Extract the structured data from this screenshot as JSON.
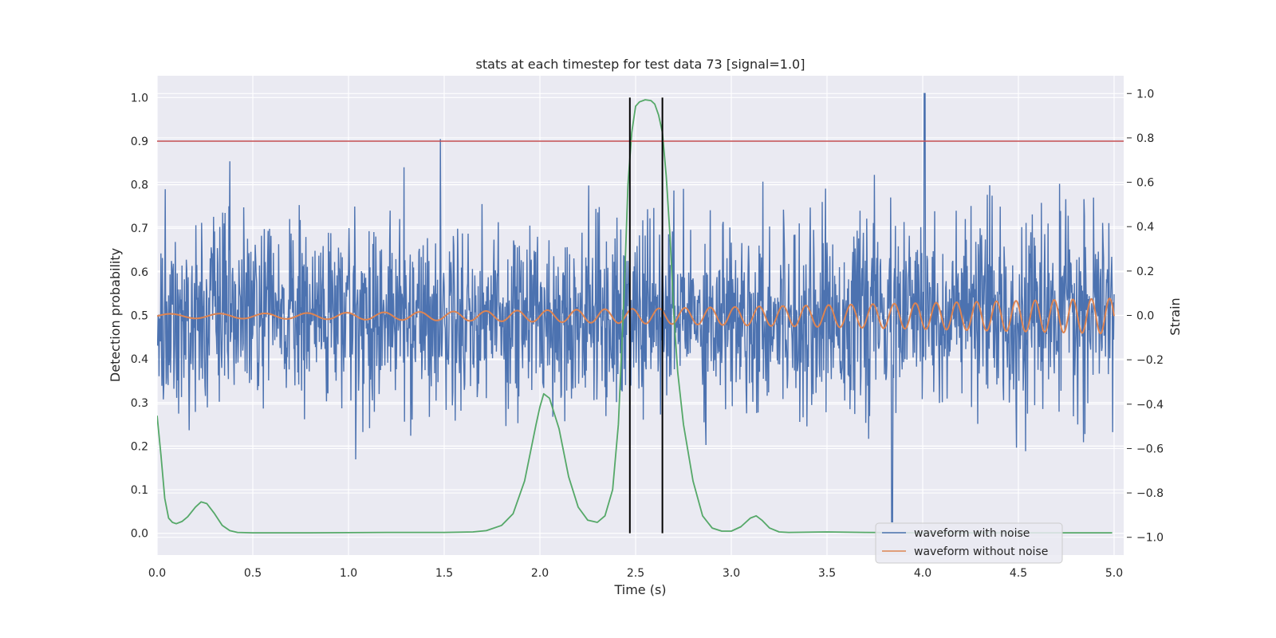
{
  "chart_data": {
    "type": "line",
    "title": "stats at each timestep for test data 73 [signal=1.0]",
    "xlabel": "Time (s)",
    "ylabel_left": "Detection probability",
    "ylabel_right": "Strain",
    "xlim": [
      0.0,
      5.05
    ],
    "ylim_left": [
      -0.05,
      1.05
    ],
    "ylim_right": [
      -1.08,
      1.08
    ],
    "xticks": [
      "0.0",
      "0.5",
      "1.0",
      "1.5",
      "2.0",
      "2.5",
      "3.0",
      "3.5",
      "4.0",
      "4.5",
      "5.0"
    ],
    "yticks_left": [
      "0.0",
      "0.1",
      "0.2",
      "0.3",
      "0.4",
      "0.5",
      "0.6",
      "0.7",
      "0.8",
      "0.9",
      "1.0"
    ],
    "yticks_right": [
      "−1.0",
      "−0.8",
      "−0.6",
      "−0.4",
      "−0.2",
      "0.0",
      "0.2",
      "0.4",
      "0.6",
      "0.8",
      "1.0"
    ],
    "grid": true,
    "legend_placement": "lower-right",
    "threshold": {
      "value": 0.9,
      "axis": "left",
      "color": "#c44e52"
    },
    "event_markers": {
      "x": [
        2.47,
        2.64
      ],
      "color": "#000000",
      "ymin": 0.0,
      "ymax": 1.0
    },
    "series": [
      {
        "name": "waveform with noise",
        "axis": "right",
        "color": "#4c72b0",
        "kind": "noise",
        "approx_mean": 0.0,
        "approx_range": [
          -1.0,
          1.0
        ],
        "max_point": [
          4.01,
          1.0
        ],
        "min_point": [
          3.84,
          -0.93
        ]
      },
      {
        "name": "waveform without noise",
        "axis": "right",
        "color": "#dd8452",
        "kind": "chirp",
        "approx_amplitude_start": 0.01,
        "approx_amplitude_end": 0.08
      },
      {
        "axis": "left",
        "color": "#55a868",
        "x": [
          0.0,
          0.02,
          0.04,
          0.06,
          0.08,
          0.1,
          0.13,
          0.16,
          0.2,
          0.23,
          0.26,
          0.3,
          0.34,
          0.38,
          0.42,
          0.5,
          0.8,
          1.2,
          1.5,
          1.65,
          1.72,
          1.8,
          1.86,
          1.92,
          1.98,
          2.0,
          2.02,
          2.05,
          2.1,
          2.15,
          2.2,
          2.25,
          2.3,
          2.34,
          2.38,
          2.41,
          2.44,
          2.46,
          2.48,
          2.5,
          2.52,
          2.55,
          2.58,
          2.6,
          2.62,
          2.64,
          2.66,
          2.68,
          2.7,
          2.72,
          2.75,
          2.8,
          2.85,
          2.9,
          2.95,
          3.0,
          3.05,
          3.1,
          3.13,
          3.16,
          3.2,
          3.25,
          3.3,
          3.5,
          3.7,
          4.0,
          4.5,
          4.99
        ],
        "values": [
          0.27,
          0.18,
          0.08,
          0.035,
          0.025,
          0.022,
          0.027,
          0.038,
          0.06,
          0.072,
          0.068,
          0.045,
          0.018,
          0.006,
          0.002,
          0.001,
          0.001,
          0.002,
          0.002,
          0.003,
          0.006,
          0.018,
          0.045,
          0.12,
          0.25,
          0.29,
          0.32,
          0.31,
          0.24,
          0.13,
          0.06,
          0.03,
          0.025,
          0.04,
          0.1,
          0.25,
          0.55,
          0.8,
          0.92,
          0.98,
          0.99,
          0.995,
          0.993,
          0.985,
          0.96,
          0.92,
          0.82,
          0.68,
          0.5,
          0.37,
          0.25,
          0.12,
          0.04,
          0.012,
          0.005,
          0.005,
          0.015,
          0.035,
          0.04,
          0.03,
          0.012,
          0.003,
          0.002,
          0.003,
          0.002,
          0.001,
          0.001,
          0.001
        ]
      }
    ]
  }
}
